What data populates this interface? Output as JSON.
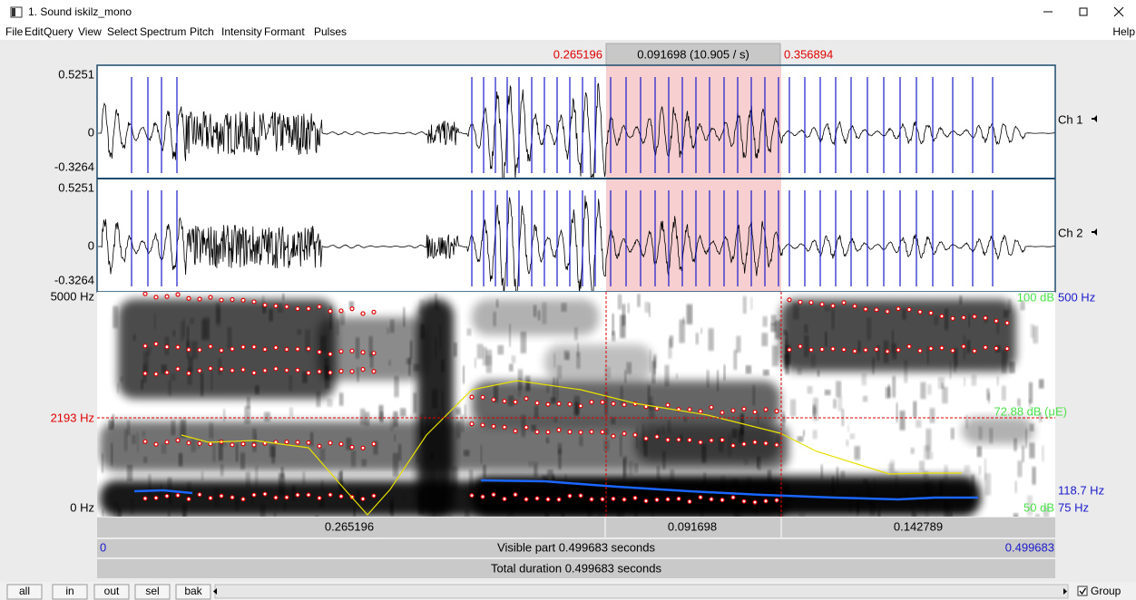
{
  "window": {
    "title": "1. Sound iskilz_mono"
  },
  "menu": [
    "File",
    "Edit",
    "Query",
    "View",
    "Select",
    "Spectrum",
    "Pitch",
    "Intensity",
    "Formant",
    "Pulses"
  ],
  "help": "Help",
  "selection": {
    "start": "0.265196",
    "length": "0.091698 (10.905 / s)",
    "end": "0.356894"
  },
  "channels": [
    {
      "max": "0.5251",
      "zero": "0",
      "min": "-0.3264",
      "name": "Ch 1"
    },
    {
      "max": "0.5251",
      "zero": "0",
      "min": "-0.3264",
      "name": "Ch 2"
    }
  ],
  "spectrogram": {
    "top": "5000 Hz",
    "cursor": "2193 Hz",
    "bottom": "0 Hz",
    "intensity_top": "100 dB",
    "pitch_top": "500 Hz",
    "intensity_value": "72.88 dB (μE)",
    "pitch_value": "118.7 Hz",
    "intensity_bottom": "50 dB",
    "pitch_bottom": "75 Hz"
  },
  "segments": [
    "0.265196",
    "0.091698",
    "0.142789"
  ],
  "visible": {
    "start": "0",
    "label": "Visible part 0.499683 seconds",
    "end": "0.499683"
  },
  "total": "Total duration 0.499683 seconds",
  "buttons": [
    "all",
    "in",
    "out",
    "sel",
    "bak"
  ],
  "group": "Group"
}
